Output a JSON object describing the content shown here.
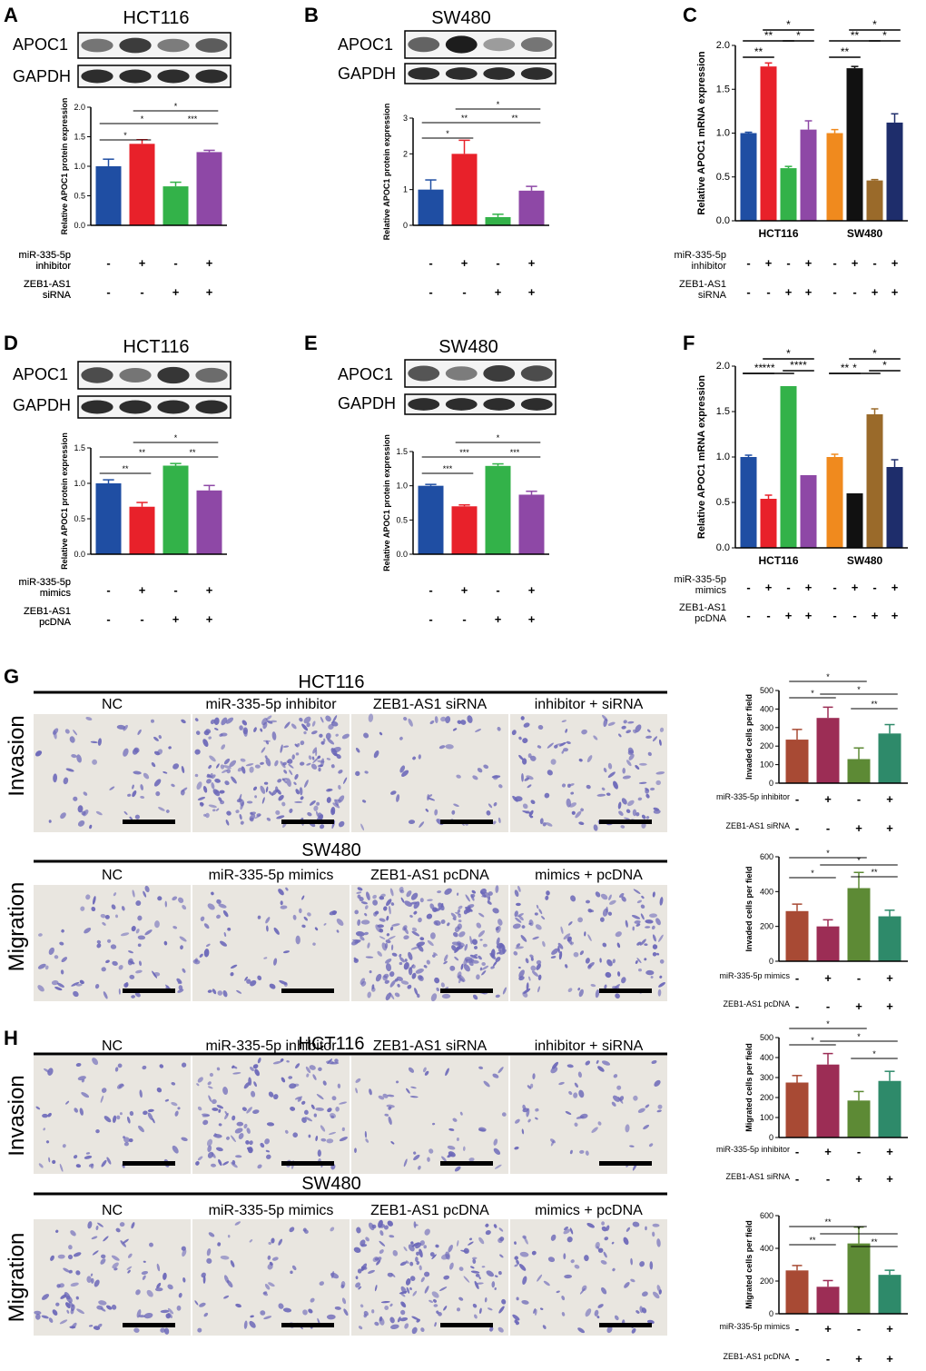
{
  "panels": {
    "A": {
      "letter": "A",
      "cell_line": "HCT116",
      "blots": [
        "APOC1",
        "GAPDH"
      ]
    },
    "B": {
      "letter": "B",
      "cell_line": "SW480",
      "blots": [
        "APOC1",
        "GAPDH"
      ]
    },
    "C": {
      "letter": "C"
    },
    "D": {
      "letter": "D",
      "cell_line": "HCT116",
      "blots": [
        "APOC1",
        "GAPDH"
      ]
    },
    "E": {
      "letter": "E",
      "cell_line": "SW480",
      "blots": [
        "APOC1",
        "GAPDH"
      ]
    },
    "F": {
      "letter": "F"
    },
    "G": {
      "letter": "G",
      "rows": [
        {
          "cell_line": "HCT116",
          "side_label": "Invasion",
          "images": [
            "NC",
            "miR-335-5p inhibitor",
            "ZEB1-AS1 siRNA",
            "inhibitor + siRNA"
          ]
        },
        {
          "cell_line": "SW480",
          "side_label": "Migration",
          "images": [
            "NC",
            "miR-335-5p mimics",
            "ZEB1-AS1 pcDNA",
            "mimics + pcDNA"
          ]
        }
      ]
    },
    "H": {
      "letter": "H",
      "rows": [
        {
          "cell_line": "HCT116",
          "side_label": "Invasion",
          "images": [
            "NC",
            "miR-335-5p inhibitor",
            "ZEB1-AS1 siRNA",
            "inhibitor + siRNA"
          ]
        },
        {
          "cell_line": "SW480",
          "side_label": "Migration",
          "images": [
            "NC",
            "miR-335-5p mimics",
            "ZEB1-AS1 pcDNA",
            "mimics + pcDNA"
          ]
        }
      ]
    }
  },
  "colors": {
    "blue": "#1f4ea3",
    "red": "#e8212a",
    "green": "#33b249",
    "purple": "#8e48a6",
    "orange": "#f08a1e",
    "black": "#111111",
    "brown": "#9a6a2a",
    "navy": "#1e2d6b",
    "rust": "#a84a34",
    "maroon": "#9c2d55",
    "olive": "#5d8a35",
    "teal": "#2e8a6a",
    "cells": "#6a66b8"
  },
  "chart_data": [
    {
      "id": "A",
      "type": "bar",
      "ylabel": "Relative APOC1 protein expression",
      "ylim": [
        0,
        2.0
      ],
      "yticks": [
        0,
        0.5,
        1.0,
        1.5,
        2.0
      ],
      "tick_labels": [
        "0.0",
        "0.5",
        "1.0",
        "1.5",
        "2.0"
      ],
      "values": [
        1.0,
        1.38,
        0.66,
        1.24
      ],
      "errors": [
        0.12,
        0.07,
        0.07,
        0.03
      ],
      "significance": [
        {
          "pair": [
            0,
            1
          ],
          "label": "*"
        },
        {
          "pair": [
            0,
            2
          ],
          "label": "*"
        },
        {
          "pair": [
            1,
            3
          ],
          "label": "*"
        },
        {
          "pair": [
            2,
            3
          ],
          "label": "***"
        }
      ],
      "conditions": [
        {
          "label": "miR-335-5p\ninhibitor",
          "signs": [
            "-",
            "+",
            "-",
            "+"
          ]
        },
        {
          "label": "ZEB1-AS1\nsiRNA",
          "signs": [
            "-",
            "-",
            "+",
            "+"
          ]
        }
      ]
    },
    {
      "id": "B",
      "type": "bar",
      "ylabel": "Relative APOC1 protein expression",
      "ylim": [
        0,
        3
      ],
      "yticks": [
        0,
        1,
        2,
        3
      ],
      "tick_labels": [
        "0",
        "1",
        "2",
        "3"
      ],
      "values": [
        1.0,
        2.0,
        0.23,
        0.97
      ],
      "errors": [
        0.27,
        0.38,
        0.08,
        0.12
      ],
      "significance": [
        {
          "pair": [
            0,
            1
          ],
          "label": "*"
        },
        {
          "pair": [
            0,
            2
          ],
          "label": "**"
        },
        {
          "pair": [
            1,
            3
          ],
          "label": "*"
        },
        {
          "pair": [
            2,
            3
          ],
          "label": "**"
        }
      ],
      "conditions": [
        {
          "label": "miR-335-5p\ninhibitor",
          "signs": [
            "-",
            "+",
            "-",
            "+"
          ]
        },
        {
          "label": "ZEB1-AS1\nsiRNA",
          "signs": [
            "-",
            "-",
            "+",
            "+"
          ]
        }
      ]
    },
    {
      "id": "C",
      "type": "bar",
      "ylabel": "Relative APOC1 mRNA expression",
      "ylim": [
        0,
        2.0
      ],
      "yticks": [
        0,
        0.5,
        1.0,
        1.5,
        2.0
      ],
      "tick_labels": [
        "0.0",
        "0.5",
        "1.0",
        "1.5",
        "2.0"
      ],
      "categories": [
        "HCT116",
        "SW480"
      ],
      "groups": [
        {
          "values": [
            1.0,
            1.76,
            0.6,
            1.04
          ],
          "errors": [
            0.01,
            0.04,
            0.02,
            0.1
          ],
          "significance": [
            {
              "pair": [
                0,
                1
              ],
              "label": "**"
            },
            {
              "pair": [
                0,
                2
              ],
              "label": "**"
            },
            {
              "pair": [
                1,
                3
              ],
              "label": "*"
            },
            {
              "pair": [
                2,
                3
              ],
              "label": "*"
            }
          ]
        },
        {
          "values": [
            1.0,
            1.74,
            0.46,
            1.12
          ],
          "errors": [
            0.04,
            0.02,
            0.01,
            0.1
          ],
          "significance": [
            {
              "pair": [
                0,
                1
              ],
              "label": "**"
            },
            {
              "pair": [
                0,
                2
              ],
              "label": "**"
            },
            {
              "pair": [
                1,
                3
              ],
              "label": "*"
            },
            {
              "pair": [
                2,
                3
              ],
              "label": "*"
            }
          ]
        }
      ],
      "conditions": [
        {
          "label": "miR-335-5p\ninhibitor",
          "signs": [
            "-",
            "+",
            "-",
            "+"
          ]
        },
        {
          "label": "ZEB1-AS1\nsiRNA",
          "signs": [
            "-",
            "-",
            "+",
            "+"
          ]
        }
      ]
    },
    {
      "id": "D",
      "type": "bar",
      "ylabel": "Relative APOC1 protein expression",
      "ylim": [
        0,
        1.5
      ],
      "yticks": [
        0,
        0.5,
        1.0,
        1.5
      ],
      "tick_labels": [
        "0.0",
        "0.5",
        "1.0",
        "1.5"
      ],
      "values": [
        1.0,
        0.67,
        1.25,
        0.9
      ],
      "errors": [
        0.05,
        0.06,
        0.03,
        0.07
      ],
      "significance": [
        {
          "pair": [
            0,
            1
          ],
          "label": "**"
        },
        {
          "pair": [
            0,
            2
          ],
          "label": "**"
        },
        {
          "pair": [
            1,
            3
          ],
          "label": "*"
        },
        {
          "pair": [
            2,
            3
          ],
          "label": "**"
        }
      ],
      "conditions": [
        {
          "label": "miR-335-5p\nmimics",
          "signs": [
            "-",
            "+",
            "-",
            "+"
          ]
        },
        {
          "label": "ZEB1-AS1\npcDNA",
          "signs": [
            "-",
            "-",
            "+",
            "+"
          ]
        }
      ]
    },
    {
      "id": "E",
      "type": "bar",
      "ylabel": "Relative APOC1 protein expression",
      "ylim": [
        0,
        1.5
      ],
      "yticks": [
        0,
        0.5,
        1.0,
        1.5
      ],
      "tick_labels": [
        "0.0",
        "0.5",
        "1.0",
        "1.5"
      ],
      "values": [
        1.0,
        0.7,
        1.29,
        0.87
      ],
      "errors": [
        0.02,
        0.02,
        0.03,
        0.05
      ],
      "significance": [
        {
          "pair": [
            0,
            1
          ],
          "label": "***"
        },
        {
          "pair": [
            0,
            2
          ],
          "label": "***"
        },
        {
          "pair": [
            1,
            3
          ],
          "label": "*"
        },
        {
          "pair": [
            2,
            3
          ],
          "label": "***"
        }
      ],
      "conditions": [
        {
          "label": "miR-335-5p\nmimics",
          "signs": [
            "-",
            "+",
            "-",
            "+"
          ]
        },
        {
          "label": "ZEB1-AS1\npcDNA",
          "signs": [
            "-",
            "-",
            "+",
            "+"
          ]
        }
      ]
    },
    {
      "id": "F",
      "type": "bar",
      "ylabel": "Relative APOC1 mRNA expression",
      "ylim": [
        0,
        2.0
      ],
      "yticks": [
        0,
        0.5,
        1.0,
        1.5,
        2.0
      ],
      "tick_labels": [
        "0.0",
        "0.5",
        "1.0",
        "1.5",
        "2.0"
      ],
      "categories": [
        "HCT116",
        "SW480"
      ],
      "groups": [
        {
          "values": [
            1.0,
            0.54,
            1.78,
            0.8
          ],
          "errors": [
            0.02,
            0.04,
            0.0,
            0.0
          ],
          "significance": [
            {
              "pair": [
                0,
                1
              ],
              "label": "**"
            },
            {
              "pair": [
                0,
                2
              ],
              "label": "***"
            },
            {
              "pair": [
                1,
                3
              ],
              "label": "*"
            },
            {
              "pair": [
                2,
                3
              ],
              "label": "****"
            }
          ]
        },
        {
          "values": [
            1.0,
            0.6,
            1.47,
            0.89
          ],
          "errors": [
            0.03,
            0.0,
            0.06,
            0.08
          ],
          "significance": [
            {
              "pair": [
                0,
                1
              ],
              "label": "**"
            },
            {
              "pair": [
                0,
                2
              ],
              "label": "*"
            },
            {
              "pair": [
                1,
                3
              ],
              "label": "*"
            },
            {
              "pair": [
                2,
                3
              ],
              "label": "*"
            }
          ]
        }
      ],
      "conditions": [
        {
          "label": "miR-335-5p\nmimics",
          "signs": [
            "-",
            "+",
            "-",
            "+"
          ]
        },
        {
          "label": "ZEB1-AS1\npcDNA",
          "signs": [
            "-",
            "-",
            "+",
            "+"
          ]
        }
      ]
    },
    {
      "id": "G1",
      "type": "bar",
      "ylabel": "Invaded cells per field",
      "ylim": [
        0,
        500
      ],
      "yticks": [
        0,
        100,
        200,
        300,
        400,
        500
      ],
      "tick_labels": [
        "0",
        "100",
        "200",
        "300",
        "400",
        "500"
      ],
      "values": [
        235,
        352,
        130,
        268
      ],
      "errors": [
        55,
        58,
        60,
        48
      ],
      "significance": [
        {
          "pair": [
            0,
            1
          ],
          "label": "*"
        },
        {
          "pair": [
            0,
            2
          ],
          "label": "*"
        },
        {
          "pair": [
            1,
            3
          ],
          "label": "*"
        },
        {
          "pair": [
            2,
            3
          ],
          "label": "**"
        }
      ],
      "conditions": [
        {
          "label": "miR-335-5p  inhibitor",
          "signs": [
            "-",
            "+",
            "-",
            "+"
          ]
        },
        {
          "label": "ZEB1-AS1 siRNA",
          "signs": [
            "-",
            "-",
            "+",
            "+"
          ]
        }
      ]
    },
    {
      "id": "G2",
      "type": "bar",
      "ylabel": "Invaded cells per field",
      "ylim": [
        0,
        600
      ],
      "yticks": [
        0,
        200,
        400,
        600
      ],
      "tick_labels": [
        "0",
        "200",
        "400",
        "600"
      ],
      "values": [
        288,
        200,
        420,
        258
      ],
      "errors": [
        40,
        38,
        90,
        35
      ],
      "significance": [
        {
          "pair": [
            0,
            1
          ],
          "label": "*"
        },
        {
          "pair": [
            0,
            2
          ],
          "label": "*"
        },
        {
          "pair": [
            1,
            3
          ],
          "label": "*"
        },
        {
          "pair": [
            2,
            3
          ],
          "label": "**"
        }
      ],
      "conditions": [
        {
          "label": "miR-335-5p  mimics",
          "signs": [
            "-",
            "+",
            "-",
            "+"
          ]
        },
        {
          "label": "ZEB1-AS1 pcDNA",
          "signs": [
            "-",
            "-",
            "+",
            "+"
          ]
        }
      ]
    },
    {
      "id": "H1",
      "type": "bar",
      "ylabel": "Migrated cells per field",
      "ylim": [
        0,
        500
      ],
      "yticks": [
        0,
        100,
        200,
        300,
        400,
        500
      ],
      "tick_labels": [
        "0",
        "100",
        "200",
        "300",
        "400",
        "500"
      ],
      "values": [
        275,
        365,
        185,
        283
      ],
      "errors": [
        35,
        55,
        45,
        48
      ],
      "significance": [
        {
          "pair": [
            0,
            1
          ],
          "label": "*"
        },
        {
          "pair": [
            0,
            2
          ],
          "label": "*"
        },
        {
          "pair": [
            1,
            3
          ],
          "label": "*"
        },
        {
          "pair": [
            2,
            3
          ],
          "label": "*"
        }
      ],
      "conditions": [
        {
          "label": "miR-335-5p  inhibitor",
          "signs": [
            "-",
            "+",
            "-",
            "+"
          ]
        },
        {
          "label": "ZEB1-AS1 siRNA",
          "signs": [
            "-",
            "-",
            "+",
            "+"
          ]
        }
      ]
    },
    {
      "id": "H2",
      "type": "bar",
      "ylabel": "Migrated cells per field",
      "ylim": [
        0,
        600
      ],
      "yticks": [
        0,
        200,
        400,
        600
      ],
      "tick_labels": [
        "0",
        "200",
        "400",
        "600"
      ],
      "values": [
        265,
        165,
        430,
        238
      ],
      "errors": [
        30,
        38,
        100,
        28
      ],
      "significance": [
        {
          "pair": [
            0,
            1
          ],
          "label": "**"
        },
        {
          "pair": [
            0,
            2
          ],
          "label": "**"
        },
        {
          "pair": [
            1,
            3
          ],
          "label": "*"
        },
        {
          "pair": [
            2,
            3
          ],
          "label": "**"
        }
      ],
      "conditions": [
        {
          "label": "miR-335-5p  mimics",
          "signs": [
            "-",
            "+",
            "-",
            "+"
          ]
        },
        {
          "label": "ZEB1-AS1 pcDNA",
          "signs": [
            "-",
            "-",
            "+",
            "+"
          ]
        }
      ]
    }
  ]
}
